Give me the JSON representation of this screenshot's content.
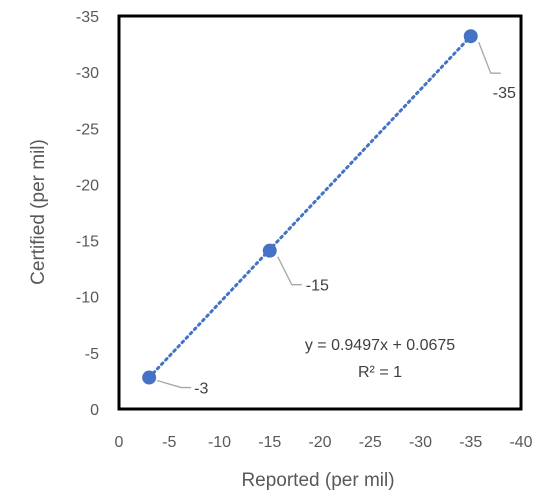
{
  "chart_data": {
    "type": "scatter",
    "xlabel": "Reported (per mil)",
    "ylabel": "Certified (per mil)",
    "xlim": [
      0,
      -40
    ],
    "ylim": [
      0,
      -35
    ],
    "x_ticks": [
      0,
      -5,
      -10,
      -15,
      -20,
      -25,
      -30,
      -35,
      -40
    ],
    "y_ticks": [
      0,
      -5,
      -10,
      -15,
      -20,
      -25,
      -30,
      -35
    ],
    "grid": false,
    "series": [
      {
        "color": "#4472C4",
        "points": [
          {
            "x": -3,
            "y": -2.8,
            "label": "-3"
          },
          {
            "x": -15,
            "y": -14.1,
            "label": "-15"
          },
          {
            "x": -35,
            "y": -33.2,
            "label": "-35"
          }
        ]
      }
    ],
    "trendline": {
      "type": "linear",
      "style": "dotted",
      "color": "#4472C4",
      "equation": "y = 0.9497x + 0.0675",
      "r_squared": "R² = 1"
    },
    "colors": {
      "plot_border": "#000000",
      "tick_text": "#595959",
      "leader_line": "#A6A6A6"
    }
  }
}
